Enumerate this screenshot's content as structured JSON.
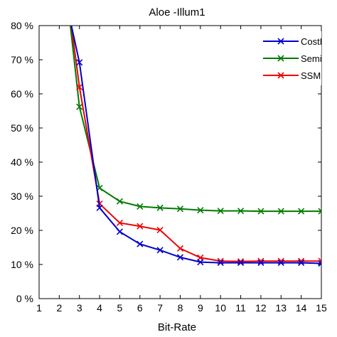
{
  "chart_data": {
    "type": "line",
    "title": "Aloe -Illum1",
    "xlabel": "Bit-Rate",
    "ylabel": "",
    "xlim": [
      1,
      15
    ],
    "ylim": [
      0,
      80
    ],
    "x_ticks": [
      "1",
      "2",
      "3",
      "4",
      "5",
      "6",
      "7",
      "8",
      "9",
      "10",
      "11",
      "12",
      "13",
      "14",
      "15"
    ],
    "y_ticks": [
      "0 %",
      "10 %",
      "20 %",
      "30 %",
      "40 %",
      "50 %",
      "60 %",
      "70 %",
      "80 %"
    ],
    "legend_position": "top-right",
    "grid": false,
    "series": [
      {
        "name": "CostFil",
        "color": "#0000cc",
        "x": [
          2.6,
          3,
          4,
          5,
          6,
          7,
          8,
          9,
          10,
          11,
          12,
          13,
          14,
          15
        ],
        "values": [
          80,
          69.2,
          26.6,
          19.6,
          16.0,
          14.2,
          12.1,
          10.7,
          10.5,
          10.5,
          10.5,
          10.5,
          10.5,
          10.3
        ]
      },
      {
        "name": "SemiG",
        "color": "#007a00",
        "x": [
          2.55,
          3,
          4,
          5,
          6,
          7,
          8,
          9,
          10,
          11,
          12,
          13,
          14,
          15
        ],
        "values": [
          80,
          56.2,
          32.4,
          28.5,
          27.0,
          26.6,
          26.3,
          25.9,
          25.7,
          25.7,
          25.6,
          25.6,
          25.6,
          25.6
        ]
      },
      {
        "name": "SSMP",
        "color": "#ee0000",
        "x": [
          2.6,
          3,
          4,
          5,
          6,
          7,
          8,
          9,
          10,
          11,
          12,
          13,
          14,
          15
        ],
        "values": [
          80,
          62.0,
          27.8,
          22.2,
          21.2,
          20.1,
          14.7,
          12.0,
          11.0,
          10.9,
          11.0,
          11.0,
          11.0,
          11.0
        ]
      }
    ]
  }
}
